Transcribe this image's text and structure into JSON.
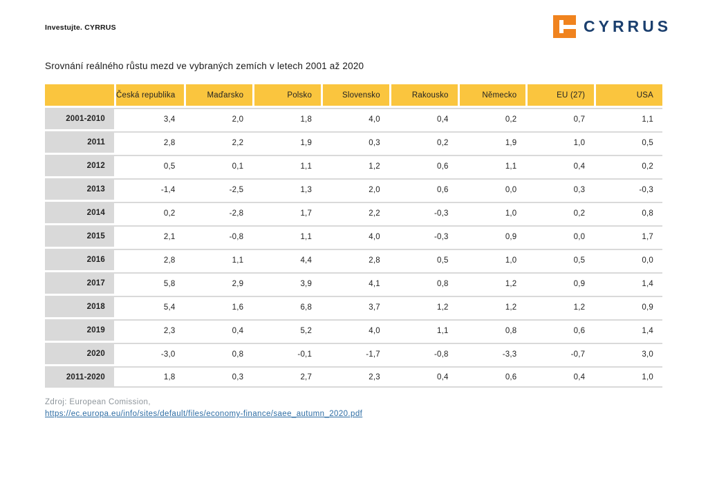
{
  "page": {
    "tagline": "Investujte. CYRRUS",
    "brand": "CYRRUS"
  },
  "chart_data": {
    "type": "table",
    "title": "Srovnání reálného růstu mezd ve vybraných zemích v letech 2001 až 2020",
    "number_format": "decimal-comma, one decimal place",
    "columns": [
      "Česká republika",
      "Maďarsko",
      "Polsko",
      "Slovensko",
      "Rakousko",
      "Německo",
      "EU (27)",
      "USA"
    ],
    "rows": [
      {
        "label": "2001-2010",
        "values": [
          3.4,
          2.0,
          1.8,
          4.0,
          0.4,
          0.2,
          0.7,
          1.1
        ]
      },
      {
        "label": "2011",
        "values": [
          2.8,
          2.2,
          1.9,
          0.3,
          0.2,
          1.9,
          1.0,
          0.5
        ]
      },
      {
        "label": "2012",
        "values": [
          0.5,
          0.1,
          1.1,
          1.2,
          0.6,
          1.1,
          0.4,
          0.2
        ]
      },
      {
        "label": "2013",
        "values": [
          -1.4,
          -2.5,
          1.3,
          2.0,
          0.6,
          0.0,
          0.3,
          -0.3
        ]
      },
      {
        "label": "2014",
        "values": [
          0.2,
          -2.8,
          1.7,
          2.2,
          -0.3,
          1.0,
          0.2,
          0.8
        ]
      },
      {
        "label": "2015",
        "values": [
          2.1,
          -0.8,
          1.1,
          4.0,
          -0.3,
          0.9,
          0.0,
          1.7
        ]
      },
      {
        "label": "2016",
        "values": [
          2.8,
          1.1,
          4.4,
          2.8,
          0.5,
          1.0,
          0.5,
          0.0
        ]
      },
      {
        "label": "2017",
        "values": [
          5.8,
          2.9,
          3.9,
          4.1,
          0.8,
          1.2,
          0.9,
          1.4
        ]
      },
      {
        "label": "2018",
        "values": [
          5.4,
          1.6,
          6.8,
          3.7,
          1.2,
          1.2,
          1.2,
          0.9
        ]
      },
      {
        "label": "2019",
        "values": [
          2.3,
          0.4,
          5.2,
          4.0,
          1.1,
          0.8,
          0.6,
          1.4
        ]
      },
      {
        "label": "2020",
        "values": [
          -3.0,
          0.8,
          -0.1,
          -1.7,
          -0.8,
          -3.3,
          -0.7,
          3.0
        ]
      },
      {
        "label": "2011-2020",
        "values": [
          1.8,
          0.3,
          2.7,
          2.3,
          0.4,
          0.6,
          0.4,
          1.0
        ]
      }
    ]
  },
  "footer": {
    "source_label": "Zdroj: European Comission,",
    "source_url": "https://ec.europa.eu/info/sites/default/files/economy-finance/saee_autumn_2020.pdf"
  },
  "colors": {
    "header_fill": "#FAC53E",
    "row_label_fill": "#D9D9D9",
    "brand_orange": "#F0831E",
    "brand_navy": "#1B3F6E",
    "link_blue": "#2E6DA4",
    "source_grey": "#8E959B"
  }
}
